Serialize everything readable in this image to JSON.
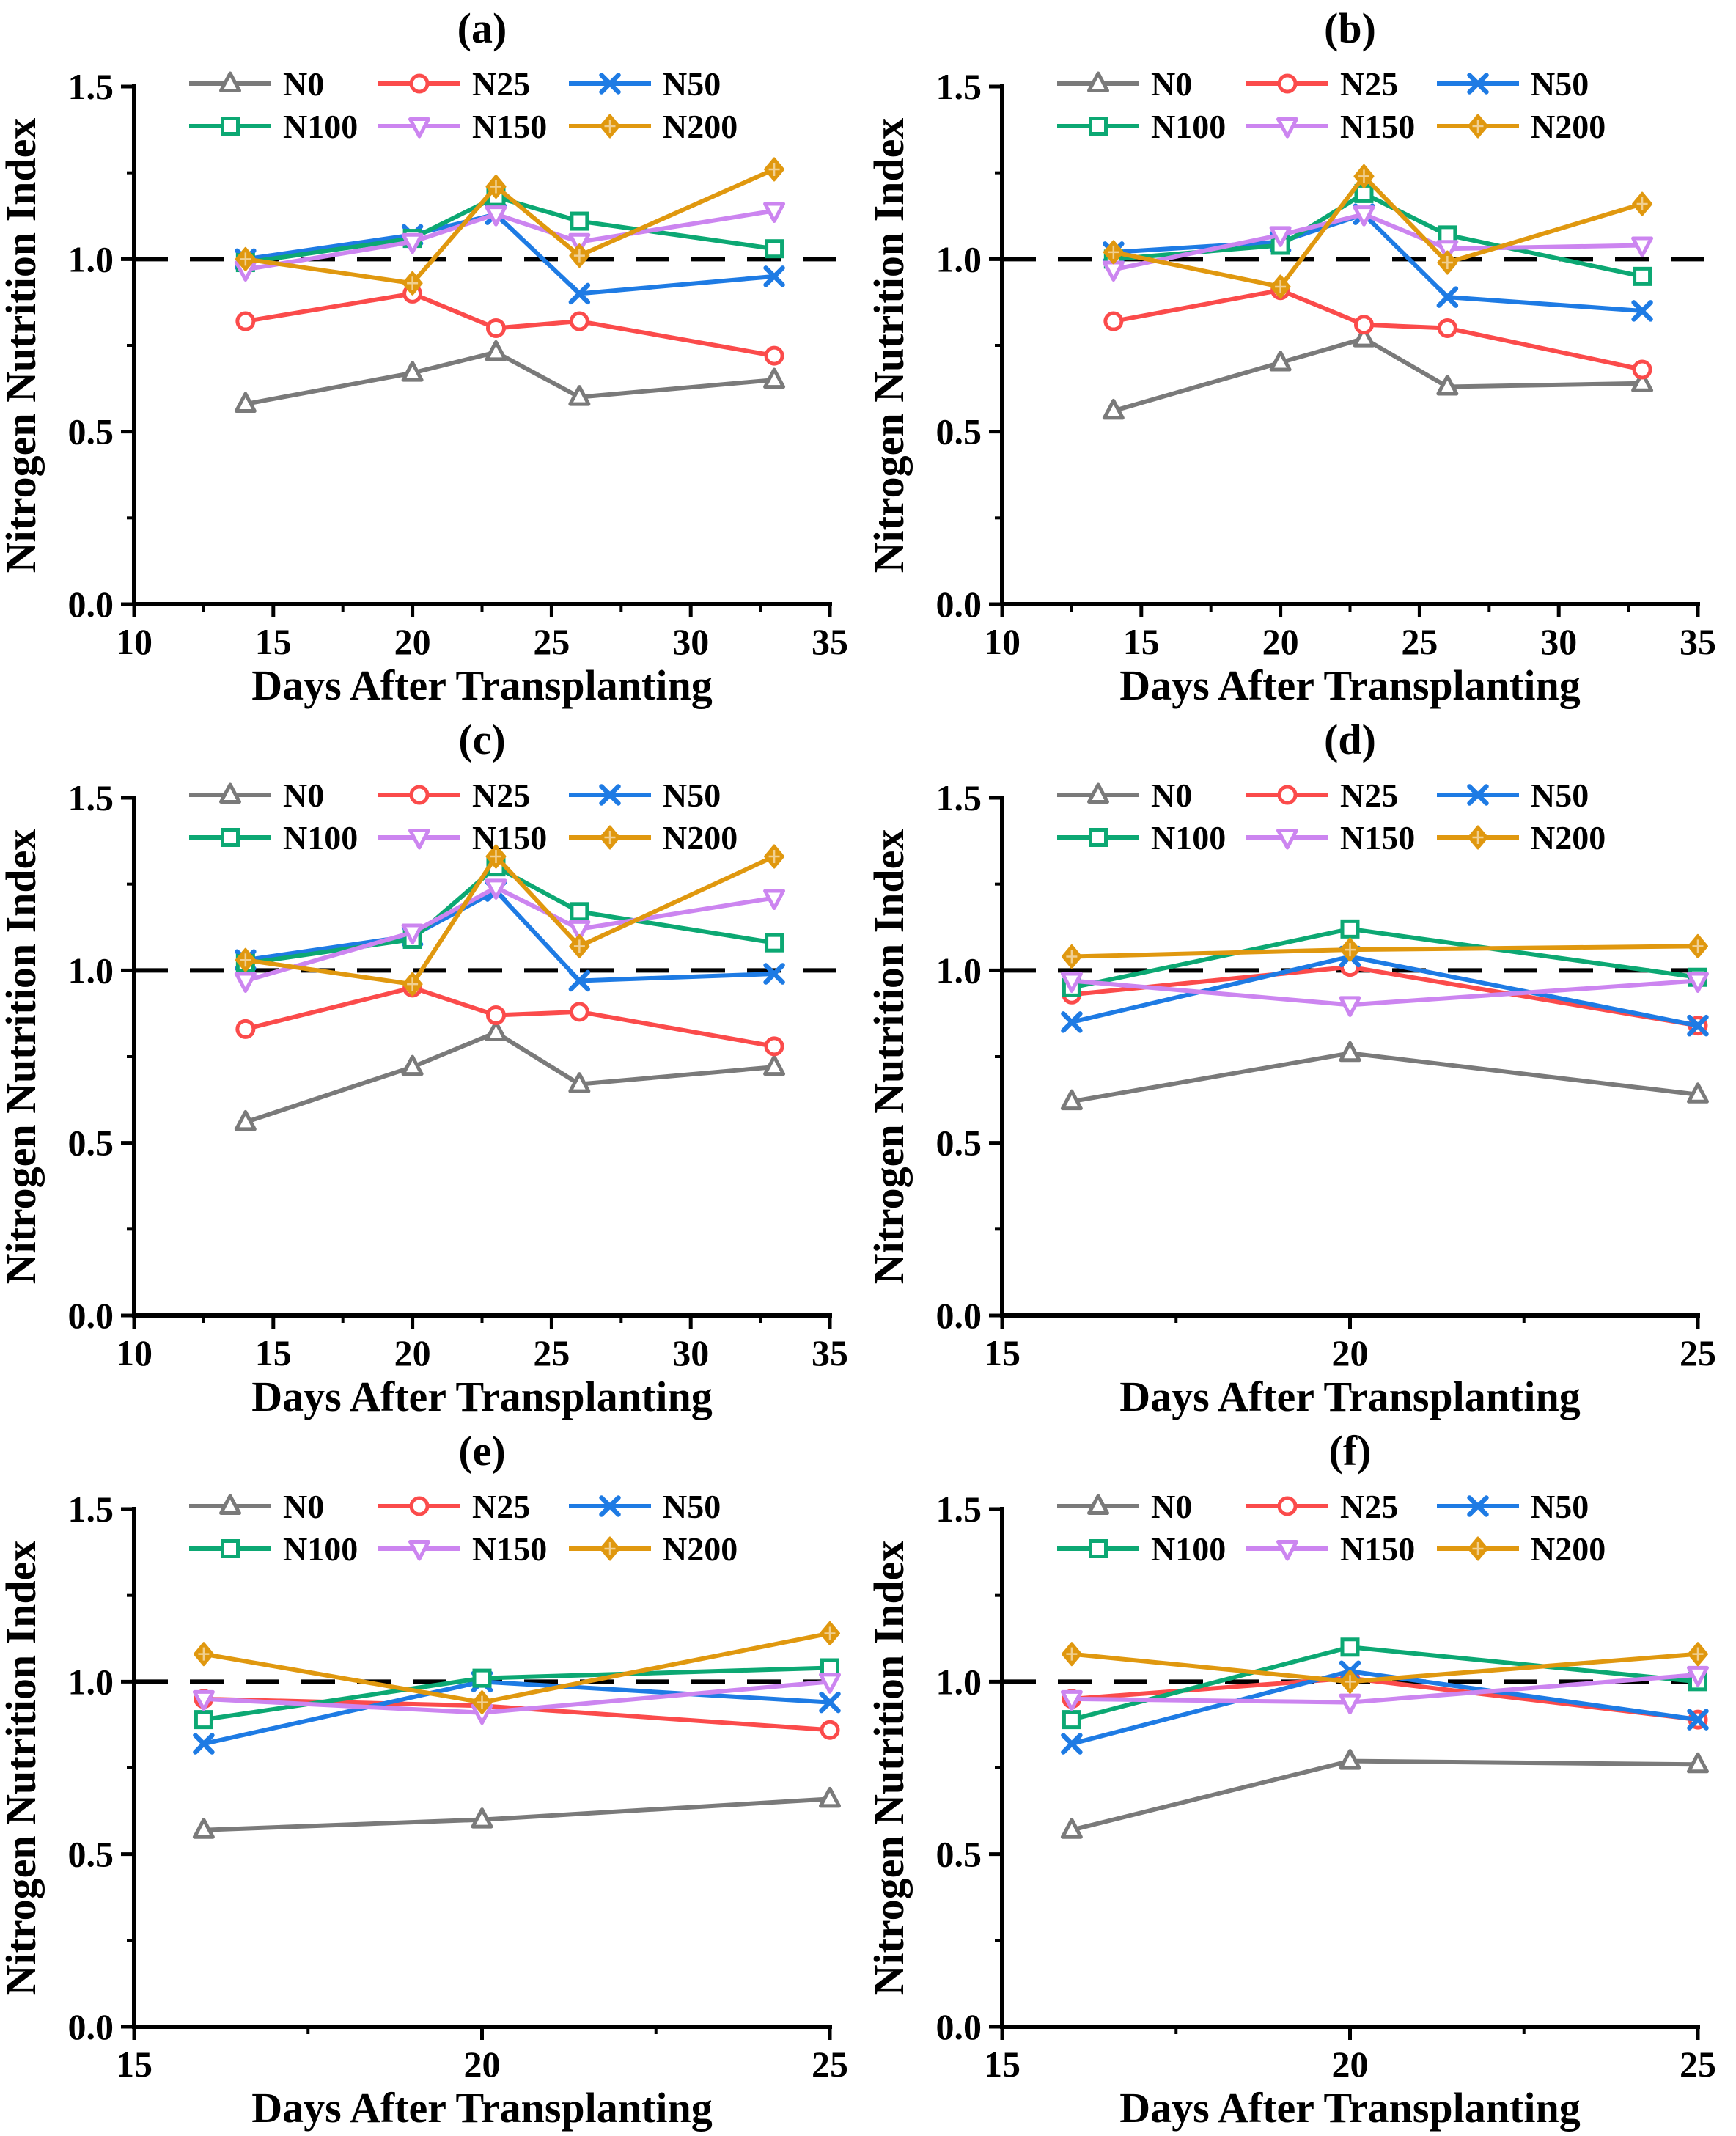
{
  "figure": {
    "ylabel": "Nitrogen Nutrition Index",
    "xlabel": "Days After Transplanting",
    "reference_line_y": 1.0,
    "series_names": [
      "N0",
      "N25",
      "N50",
      "N100",
      "N150",
      "N200"
    ],
    "series_colors": {
      "N0": "#7a7a7a",
      "N25": "#fb4b4b",
      "N50": "#1e7be4",
      "N100": "#0ca873",
      "N150": "#cc85f0",
      "N200": "#e0980f"
    },
    "series_markers": {
      "N0": "triangle-up",
      "N25": "circle",
      "N50": "x-cross",
      "N100": "square",
      "N150": "triangle-down",
      "N200": "diamond"
    },
    "legend_rows": [
      [
        "N0",
        "N25",
        "N50"
      ],
      [
        "N100",
        "N150",
        "N200"
      ]
    ]
  },
  "chart_data": [
    {
      "type": "line",
      "title": "(a)",
      "xlabel": "Days After Transplanting",
      "ylabel": "Nitrogen Nutrition Index",
      "x": [
        14,
        20,
        23,
        26,
        33
      ],
      "xlim": [
        10,
        35
      ],
      "xticks": [
        10,
        15,
        20,
        25,
        30,
        35
      ],
      "ylim": [
        0,
        1.5
      ],
      "yticks": [
        0.0,
        0.5,
        1.0,
        1.5
      ],
      "grid": false,
      "ref_line_y": 1.0,
      "legend_position": "top-inside",
      "series": [
        {
          "name": "N0",
          "values": [
            0.58,
            0.67,
            0.73,
            0.6,
            0.65
          ]
        },
        {
          "name": "N25",
          "values": [
            0.82,
            0.9,
            0.8,
            0.82,
            0.72
          ]
        },
        {
          "name": "N50",
          "values": [
            1.0,
            1.07,
            1.13,
            0.9,
            0.95
          ]
        },
        {
          "name": "N100",
          "values": [
            0.99,
            1.06,
            1.18,
            1.11,
            1.03
          ]
        },
        {
          "name": "N150",
          "values": [
            0.97,
            1.05,
            1.13,
            1.05,
            1.14
          ]
        },
        {
          "name": "N200",
          "values": [
            1.0,
            0.93,
            1.21,
            1.01,
            1.26
          ]
        }
      ]
    },
    {
      "type": "line",
      "title": "(b)",
      "xlabel": "Days After Transplanting",
      "ylabel": "Nitrogen Nutrition Index",
      "x": [
        14,
        20,
        23,
        26,
        33
      ],
      "xlim": [
        10,
        35
      ],
      "xticks": [
        10,
        15,
        20,
        25,
        30,
        35
      ],
      "ylim": [
        0,
        1.5
      ],
      "yticks": [
        0.0,
        0.5,
        1.0,
        1.5
      ],
      "grid": false,
      "ref_line_y": 1.0,
      "legend_position": "top-inside",
      "series": [
        {
          "name": "N0",
          "values": [
            0.56,
            0.7,
            0.77,
            0.63,
            0.64
          ]
        },
        {
          "name": "N25",
          "values": [
            0.82,
            0.91,
            0.81,
            0.8,
            0.68
          ]
        },
        {
          "name": "N50",
          "values": [
            1.02,
            1.05,
            1.13,
            0.89,
            0.85
          ]
        },
        {
          "name": "N100",
          "values": [
            1.0,
            1.04,
            1.19,
            1.07,
            0.95
          ]
        },
        {
          "name": "N150",
          "values": [
            0.97,
            1.07,
            1.13,
            1.03,
            1.04
          ]
        },
        {
          "name": "N200",
          "values": [
            1.02,
            0.92,
            1.24,
            0.99,
            1.16
          ]
        }
      ]
    },
    {
      "type": "line",
      "title": "(c)",
      "xlabel": "Days After Transplanting",
      "ylabel": "Nitrogen Nutrition Index",
      "x": [
        14,
        20,
        23,
        26,
        33
      ],
      "xlim": [
        10,
        35
      ],
      "xticks": [
        10,
        15,
        20,
        25,
        30,
        35
      ],
      "ylim": [
        0,
        1.5
      ],
      "yticks": [
        0.0,
        0.5,
        1.0,
        1.5
      ],
      "grid": false,
      "ref_line_y": 1.0,
      "legend_position": "top-inside",
      "series": [
        {
          "name": "N0",
          "values": [
            0.56,
            0.72,
            0.82,
            0.67,
            0.72
          ]
        },
        {
          "name": "N25",
          "values": [
            0.83,
            0.95,
            0.87,
            0.88,
            0.78
          ]
        },
        {
          "name": "N50",
          "values": [
            1.03,
            1.1,
            1.23,
            0.97,
            0.99
          ]
        },
        {
          "name": "N100",
          "values": [
            1.02,
            1.09,
            1.3,
            1.17,
            1.08
          ]
        },
        {
          "name": "N150",
          "values": [
            0.97,
            1.11,
            1.24,
            1.12,
            1.21
          ]
        },
        {
          "name": "N200",
          "values": [
            1.03,
            0.96,
            1.33,
            1.07,
            1.33
          ]
        }
      ]
    },
    {
      "type": "line",
      "title": "(d)",
      "xlabel": "Days After Transplanting",
      "ylabel": "Nitrogen Nutrition Index",
      "x": [
        16,
        20,
        25
      ],
      "xlim": [
        15,
        25
      ],
      "xticks": [
        15,
        20,
        25
      ],
      "ylim": [
        0,
        1.5
      ],
      "yticks": [
        0.0,
        0.5,
        1.0,
        1.5
      ],
      "grid": false,
      "ref_line_y": 1.0,
      "legend_position": "top-inside",
      "series": [
        {
          "name": "N0",
          "values": [
            0.62,
            0.76,
            0.64
          ]
        },
        {
          "name": "N25",
          "values": [
            0.93,
            1.01,
            0.84
          ]
        },
        {
          "name": "N50",
          "values": [
            0.85,
            1.04,
            0.84
          ]
        },
        {
          "name": "N100",
          "values": [
            0.95,
            1.12,
            0.98
          ]
        },
        {
          "name": "N150",
          "values": [
            0.97,
            0.9,
            0.97
          ]
        },
        {
          "name": "N200",
          "values": [
            1.04,
            1.06,
            1.07
          ]
        }
      ]
    },
    {
      "type": "line",
      "title": "(e)",
      "xlabel": "Days After Transplanting",
      "ylabel": "Nitrogen Nutrition Index",
      "x": [
        16,
        20,
        25
      ],
      "xlim": [
        15,
        25
      ],
      "xticks": [
        15,
        20,
        25
      ],
      "ylim": [
        0,
        1.5
      ],
      "yticks": [
        0.0,
        0.5,
        1.0,
        1.5
      ],
      "grid": false,
      "ref_line_y": 1.0,
      "legend_position": "top-inside",
      "series": [
        {
          "name": "N0",
          "values": [
            0.57,
            0.6,
            0.66
          ]
        },
        {
          "name": "N25",
          "values": [
            0.95,
            0.93,
            0.86
          ]
        },
        {
          "name": "N50",
          "values": [
            0.82,
            1.0,
            0.94
          ]
        },
        {
          "name": "N100",
          "values": [
            0.89,
            1.01,
            1.04
          ]
        },
        {
          "name": "N150",
          "values": [
            0.95,
            0.91,
            1.0
          ]
        },
        {
          "name": "N200",
          "values": [
            1.08,
            0.94,
            1.14
          ]
        }
      ]
    },
    {
      "type": "line",
      "title": "(f)",
      "xlabel": "Days After Transplanting",
      "ylabel": "Nitrogen Nutrition Index",
      "x": [
        16,
        20,
        25
      ],
      "xlim": [
        15,
        25
      ],
      "xticks": [
        15,
        20,
        25
      ],
      "ylim": [
        0,
        1.5
      ],
      "yticks": [
        0.0,
        0.5,
        1.0,
        1.5
      ],
      "grid": false,
      "ref_line_y": 1.0,
      "legend_position": "top-inside",
      "series": [
        {
          "name": "N0",
          "values": [
            0.57,
            0.77,
            0.76
          ]
        },
        {
          "name": "N25",
          "values": [
            0.95,
            1.01,
            0.89
          ]
        },
        {
          "name": "N50",
          "values": [
            0.82,
            1.03,
            0.89
          ]
        },
        {
          "name": "N100",
          "values": [
            0.89,
            1.1,
            1.0
          ]
        },
        {
          "name": "N150",
          "values": [
            0.95,
            0.94,
            1.02
          ]
        },
        {
          "name": "N200",
          "values": [
            1.08,
            1.0,
            1.08
          ]
        }
      ]
    }
  ]
}
